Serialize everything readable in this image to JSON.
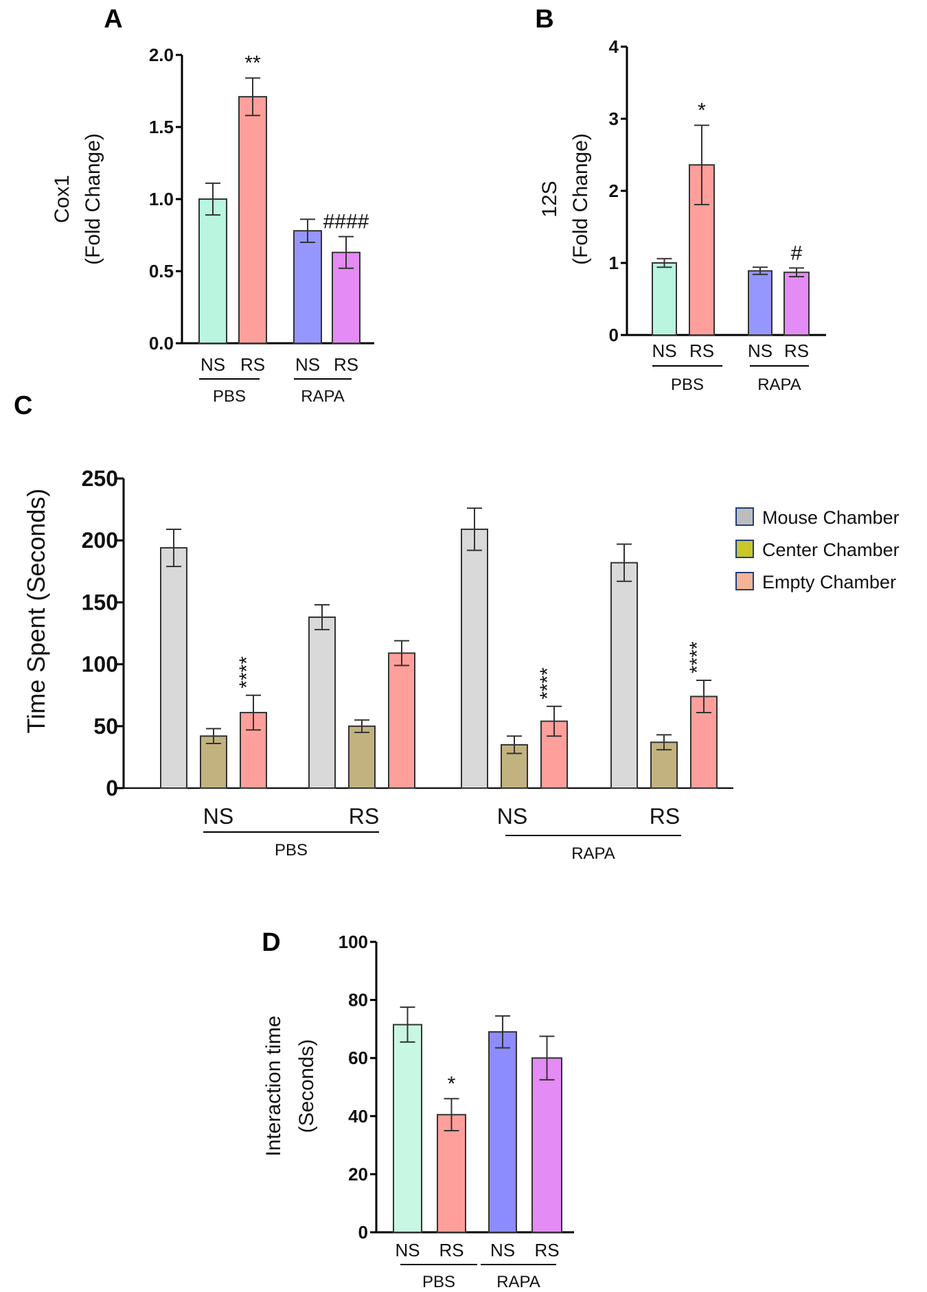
{
  "chart_data": [
    {
      "id": "A",
      "type": "bar",
      "panel_label": "A",
      "ylabel_line1": "Cox1",
      "ylabel_line2": "(Fold Change)",
      "ylim": [
        0,
        2.0
      ],
      "yticks": [
        "0.0",
        "0.5",
        "1.0",
        "1.5",
        "2.0"
      ],
      "bars": [
        {
          "label": "NS",
          "group": "PBS",
          "value": 1.0,
          "error": 0.11,
          "color": "#b9f5df",
          "sig": ""
        },
        {
          "label": "RS",
          "group": "PBS",
          "value": 1.71,
          "error": 0.13,
          "color": "#ff9f9b",
          "sig": "**"
        },
        {
          "label": "NS",
          "group": "RAPA",
          "value": 0.78,
          "error": 0.08,
          "color": "#9696ff",
          "sig": ""
        },
        {
          "label": "RS",
          "group": "RAPA",
          "value": 0.63,
          "error": 0.11,
          "color": "#e48bf5",
          "sig": "####"
        }
      ],
      "groups": [
        "PBS",
        "RAPA"
      ]
    },
    {
      "id": "B",
      "type": "bar",
      "panel_label": "B",
      "ylabel_line1": "12S",
      "ylabel_line2": "(Fold Change)",
      "ylim": [
        0,
        4
      ],
      "yticks": [
        "0",
        "1",
        "2",
        "3",
        "4"
      ],
      "bars": [
        {
          "label": "NS",
          "group": "PBS",
          "value": 1.0,
          "error": 0.06,
          "color": "#b9f5df",
          "sig": ""
        },
        {
          "label": "RS",
          "group": "PBS",
          "value": 2.36,
          "error": 0.55,
          "color": "#ff9f9b",
          "sig": "*"
        },
        {
          "label": "NS",
          "group": "RAPA",
          "value": 0.89,
          "error": 0.05,
          "color": "#9696ff",
          "sig": ""
        },
        {
          "label": "RS",
          "group": "RAPA",
          "value": 0.87,
          "error": 0.06,
          "color": "#e48bf5",
          "sig": "#"
        }
      ],
      "groups": [
        "PBS",
        "RAPA"
      ]
    },
    {
      "id": "C",
      "type": "bar",
      "panel_label": "C",
      "ylabel": "Time Spent (Seconds)",
      "ylim": [
        0,
        250
      ],
      "yticks": [
        "0",
        "50",
        "100",
        "150",
        "200",
        "250"
      ],
      "legend": [
        {
          "name": "Mouse Chamber",
          "color": "#bdbdbd"
        },
        {
          "name": "Center Chamber",
          "color": "#c8c828"
        },
        {
          "name": "Empty Chamber",
          "color": "#f4b394"
        }
      ],
      "series_colors": [
        "#d9d9d9",
        "#c2b280",
        "#ff9f9b"
      ],
      "clusters": [
        {
          "label": "NS",
          "group": "PBS",
          "values": [
            194,
            42,
            61
          ],
          "errors": [
            15,
            6,
            14
          ],
          "sig": "****"
        },
        {
          "label": "RS",
          "group": "PBS",
          "values": [
            138,
            50,
            109
          ],
          "errors": [
            10,
            5,
            10
          ],
          "sig": ""
        },
        {
          "label": "NS",
          "group": "RAPA",
          "values": [
            209,
            35,
            54
          ],
          "errors": [
            17,
            7,
            12
          ],
          "sig": "****"
        },
        {
          "label": "RS",
          "group": "RAPA",
          "values": [
            182,
            37,
            74
          ],
          "errors": [
            15,
            6,
            13
          ],
          "sig": "****"
        }
      ],
      "groups": [
        "PBS",
        "RAPA"
      ]
    },
    {
      "id": "D",
      "type": "bar",
      "panel_label": "D",
      "ylabel_line1": "Interaction time",
      "ylabel_line2": "(Seconds)",
      "ylim": [
        0,
        100
      ],
      "yticks": [
        "0",
        "20",
        "40",
        "60",
        "80",
        "100"
      ],
      "bars": [
        {
          "label": "NS",
          "group": "PBS",
          "value": 71.5,
          "error": 6,
          "color": "#c8f8e4",
          "sig": ""
        },
        {
          "label": "RS",
          "group": "PBS",
          "value": 40.5,
          "error": 5.5,
          "color": "#ff9f9b",
          "sig": "*"
        },
        {
          "label": "NS",
          "group": "RAPA",
          "value": 69,
          "error": 5.5,
          "color": "#8c8cff",
          "sig": ""
        },
        {
          "label": "RS",
          "group": "RAPA",
          "value": 60,
          "error": 7.5,
          "color": "#e48bf5",
          "sig": ""
        }
      ],
      "groups": [
        "PBS",
        "RAPA"
      ]
    }
  ]
}
